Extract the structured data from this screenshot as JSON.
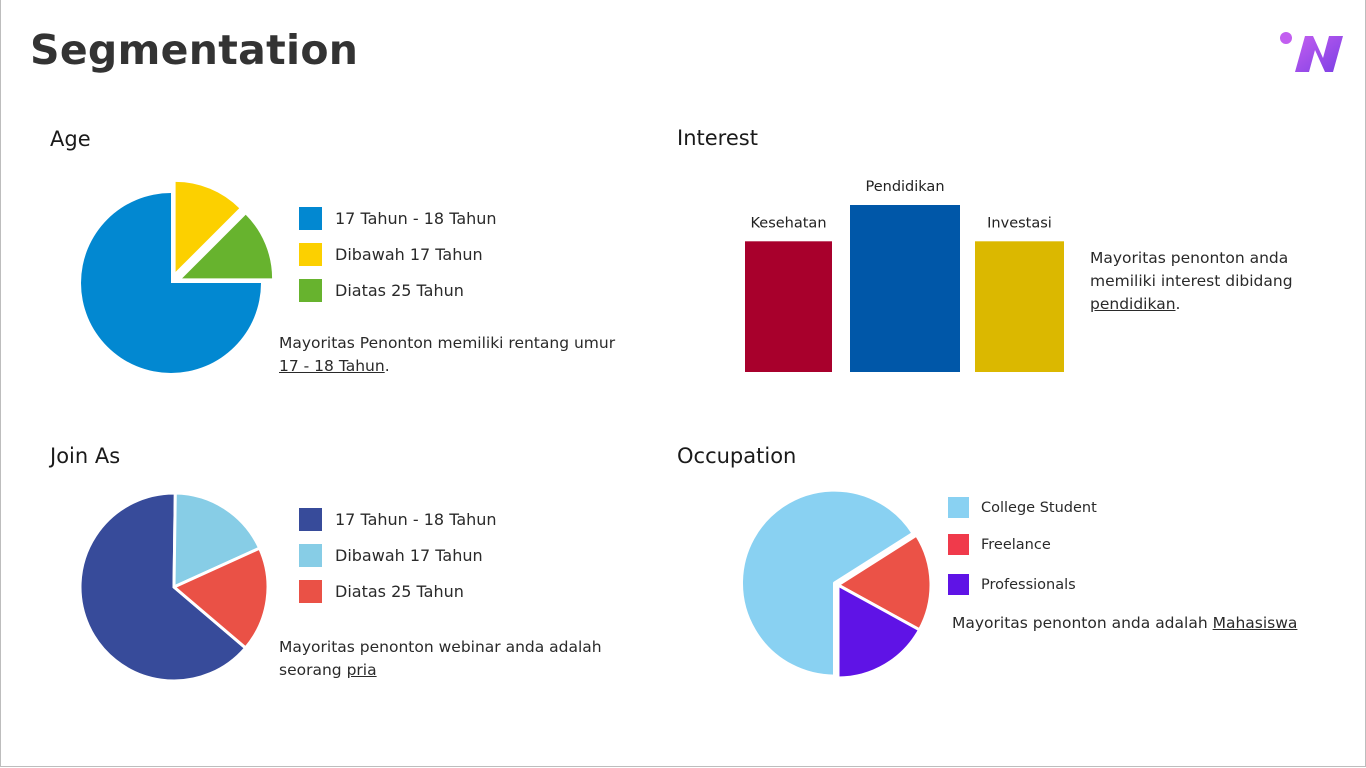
{
  "page": {
    "title": "Segmentation"
  },
  "logo": {
    "icon": "n-brand-logo-icon",
    "colors": [
      "#c25ef0",
      "#7b3fe4"
    ]
  },
  "sections": {
    "age": {
      "title": "Age",
      "caption_pre": "Mayoritas Penonton memiliki rentang umur",
      "caption_link": "17 - 18 Tahun",
      "caption_post": "."
    },
    "interest": {
      "title": "Interest",
      "caption_pre": "Mayoritas penonton anda memiliki interest dibidang",
      "caption_link": "pendidikan",
      "caption_post": "."
    },
    "join_as": {
      "title": "Join As",
      "caption_pre": "Mayoritas penonton webinar anda adalah seorang",
      "caption_link": "pria",
      "caption_post": ""
    },
    "occupation": {
      "title": "Occupation",
      "caption_pre": "Mayoritas penonton anda adalah",
      "caption_link": "Mahasiswa",
      "caption_post": ""
    }
  },
  "chart_data": [
    {
      "id": "age",
      "type": "pie",
      "title": "Age",
      "exploded": true,
      "series": [
        {
          "name": "17 Tahun - 18 Tahun",
          "value": 75,
          "color": "#0288d1"
        },
        {
          "name": "Dibawah 17 Tahun",
          "value": 12.5,
          "color": "#fcd000"
        },
        {
          "name": "Diatas 25 Tahun",
          "value": 12.5,
          "color": "#67b32e"
        }
      ]
    },
    {
      "id": "interest",
      "type": "bar",
      "title": "Interest",
      "categories": [
        "Kesehatan",
        "Pendidikan",
        "Investasi"
      ],
      "values": [
        3.6,
        4.6,
        3.6
      ],
      "colors": [
        "#a8002c",
        "#0057a8",
        "#dbb800"
      ],
      "ylim": [
        0,
        4.6
      ]
    },
    {
      "id": "join_as",
      "type": "pie",
      "title": "Join As",
      "exploded": false,
      "series": [
        {
          "name": "17 Tahun - 18 Tahun",
          "value": 64,
          "color": "#374b9a"
        },
        {
          "name": "Dibawah 17 Tahun",
          "value": 18,
          "color": "#87cde6"
        },
        {
          "name": "Diatas 25 Tahun",
          "value": 18,
          "color": "#ea5146"
        }
      ]
    },
    {
      "id": "occupation",
      "type": "pie",
      "title": "Occupation",
      "exploded": true,
      "series": [
        {
          "name": "College Student",
          "value": 66,
          "color": "#89d1f2"
        },
        {
          "name": "Freelance",
          "value": 17,
          "color": "#f03a4b"
        },
        {
          "name": "Professionals",
          "value": 17,
          "color": "#5f13e6"
        }
      ],
      "slice_colors": [
        "#89d1f2",
        "#eb5247",
        "#5f13e6"
      ]
    }
  ]
}
